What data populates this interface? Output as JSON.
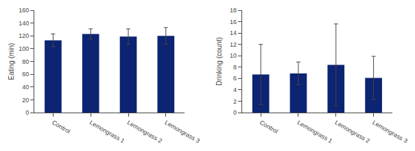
{
  "chart_data": [
    {
      "type": "bar",
      "categories": [
        "Control",
        "Lemongrass 1",
        "Lemongrass 2",
        "Lemongrass 3"
      ],
      "values": [
        113,
        123,
        119,
        120
      ],
      "errors": [
        10,
        8,
        12,
        13
      ],
      "ylabel": "Eating (min)",
      "ylim": [
        0,
        160
      ],
      "yticks": [
        0,
        20,
        40,
        60,
        80,
        100,
        120,
        140,
        160
      ],
      "color": "#0d2472",
      "grid": false
    },
    {
      "type": "bar",
      "categories": [
        "Control",
        "Lemongrass 1",
        "Lemongrass 2",
        "Lemongrass 3"
      ],
      "values": [
        6.7,
        6.9,
        8.4,
        6.1
      ],
      "errors": [
        5.3,
        2.0,
        7.2,
        3.8
      ],
      "ylabel": "Drinking (count)",
      "ylim": [
        0,
        18
      ],
      "yticks": [
        0,
        2,
        4,
        6,
        8,
        10,
        12,
        14,
        16,
        18
      ],
      "color": "#0d2472",
      "grid": false
    }
  ]
}
